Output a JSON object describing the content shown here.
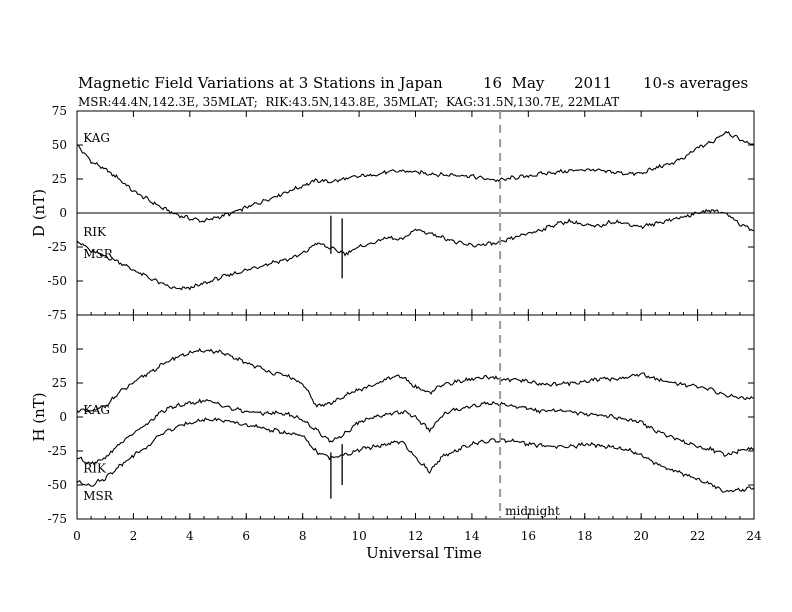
{
  "chart_data": {
    "type": "line",
    "title": "Magnetic Field Variations at 3 Stations in Japan",
    "title_date": "16  May",
    "title_year": "2011",
    "title_avg": "10-s averages",
    "subtitle": "MSR:44.4N,142.3E, 35MLAT;  RIK:43.5N,143.8E, 35MLAT;  KAG:31.5N,130.7E, 22MLAT",
    "xlabel": "Universal Time",
    "xlim": [
      0,
      24
    ],
    "x_ticks": [
      0,
      2,
      4,
      6,
      8,
      10,
      12,
      14,
      16,
      18,
      20,
      22,
      24
    ],
    "midnight_ut": 15,
    "midnight_label": "midnight",
    "panels": [
      {
        "ylabel": "D (nT)",
        "ylim": [
          -75,
          75
        ],
        "y_ticks": [
          -75,
          -50,
          -25,
          0,
          25,
          50,
          75
        ],
        "zero_line": true,
        "series": [
          {
            "name": "KAG",
            "x": [
              0,
              0.5,
              1,
              1.5,
              2,
              2.5,
              3,
              3.5,
              4,
              4.5,
              5,
              5.5,
              6,
              6.5,
              7,
              7.5,
              8,
              8.5,
              9,
              9.5,
              10,
              10.5,
              11,
              11.5,
              12,
              12.5,
              13,
              13.5,
              14,
              14.5,
              15,
              15.5,
              16,
              16.5,
              17,
              17.5,
              18,
              18.5,
              19,
              19.5,
              20,
              20.5,
              21,
              21.5,
              22,
              22.5,
              23,
              23.5,
              24
            ],
            "y": [
              50,
              38,
              32,
              25,
              16,
              10,
              4,
              -1,
              -4,
              -6,
              -3,
              0,
              4,
              8,
              12,
              16,
              20,
              24,
              23,
              25,
              27,
              28,
              30,
              31,
              30,
              29,
              28,
              28,
              27,
              25,
              24,
              26,
              27,
              29,
              30,
              31,
              32,
              31,
              30,
              29,
              29,
              33,
              36,
              40,
              48,
              52,
              60,
              54,
              50
            ]
          },
          {
            "name": "RIK",
            "x": [
              0,
              0.5,
              1,
              1.5,
              2,
              2.5,
              3,
              3.5,
              4,
              4.5,
              5,
              5.5,
              6,
              6.5,
              7,
              7.5,
              8,
              8.5,
              9,
              9.5,
              10,
              10.5,
              11,
              11.5,
              12,
              12.5,
              13,
              13.5,
              14,
              14.5,
              15,
              15.5,
              16,
              16.5,
              17,
              17.5,
              18,
              18.5,
              19,
              19.5,
              20,
              20.5,
              21,
              21.5,
              22,
              22.5,
              23,
              23.5,
              24
            ],
            "y": [
              -20,
              -28,
              -32,
              -36,
              -42,
              -47,
              -52,
              -56,
              -55,
              -52,
              -48,
              -45,
              -42,
              -39,
              -36,
              -34,
              -30,
              -22,
              -26,
              -30,
              -25,
              -22,
              -18,
              -20,
              -12,
              -15,
              -18,
              -22,
              -24,
              -23,
              -22,
              -18,
              -15,
              -12,
              -8,
              -6,
              -9,
              -10,
              -6,
              -8,
              -10,
              -8,
              -5,
              -3,
              0,
              2,
              0,
              -8,
              -13
            ]
          }
        ],
        "spikes": [
          {
            "x": 9.0,
            "y_top": -2,
            "y_bottom": -30
          },
          {
            "x": 9.4,
            "y_top": -4,
            "y_bottom": -48
          }
        ],
        "labels": [
          {
            "text": "KAG",
            "x": 0.15,
            "y": 55
          },
          {
            "text": "RIK",
            "x": 0.15,
            "y": -14
          },
          {
            "text": "MSR",
            "x": 0.15,
            "y": -30
          }
        ]
      },
      {
        "ylabel": "H (nT)",
        "ylim": [
          -75,
          75
        ],
        "y_ticks": [
          -75,
          -50,
          -25,
          0,
          25,
          50
        ],
        "zero_line": false,
        "series": [
          {
            "name": "KAG",
            "x": [
              0,
              0.5,
              1,
              1.5,
              2,
              2.5,
              3,
              3.5,
              4,
              4.5,
              5,
              5.5,
              6,
              6.5,
              7,
              7.5,
              8,
              8.5,
              9,
              9.5,
              10,
              10.5,
              11,
              11.5,
              12,
              12.5,
              13,
              13.5,
              14,
              14.5,
              15,
              15.5,
              16,
              16.5,
              17,
              17.5,
              18,
              18.5,
              19,
              19.5,
              20,
              20.5,
              21,
              21.5,
              22,
              22.5,
              23,
              23.5,
              24
            ],
            "y": [
              5,
              4,
              8,
              18,
              25,
              32,
              38,
              44,
              47,
              49,
              48,
              44,
              40,
              36,
              32,
              30,
              24,
              8,
              10,
              16,
              20,
              23,
              28,
              30,
              22,
              18,
              24,
              26,
              28,
              29,
              28,
              27,
              26,
              24,
              24,
              25,
              26,
              28,
              28,
              29,
              32,
              28,
              26,
              24,
              22,
              20,
              16,
              14,
              14
            ]
          },
          {
            "name": "RIK",
            "x": [
              0,
              0.5,
              1,
              1.5,
              2,
              2.5,
              3,
              3.5,
              4,
              4.5,
              5,
              5.5,
              6,
              6.5,
              7,
              7.5,
              8,
              8.5,
              9,
              9.5,
              10,
              10.5,
              11,
              11.5,
              12,
              12.5,
              13,
              13.5,
              14,
              14.5,
              15,
              15.5,
              16,
              16.5,
              17,
              17.5,
              18,
              18.5,
              19,
              19.5,
              20,
              20.5,
              21,
              21.5,
              22,
              22.5,
              23,
              23.5,
              24
            ],
            "y": [
              -30,
              -34,
              -30,
              -20,
              -12,
              -5,
              4,
              8,
              10,
              12,
              10,
              6,
              4,
              3,
              3,
              2,
              -2,
              -10,
              -18,
              -12,
              -4,
              0,
              2,
              4,
              0,
              -10,
              2,
              6,
              8,
              10,
              10,
              8,
              6,
              4,
              5,
              4,
              2,
              2,
              0,
              -2,
              -4,
              -10,
              -14,
              -18,
              -22,
              -24,
              -28,
              -25,
              -23
            ]
          },
          {
            "name": "MSR",
            "x": [
              0,
              0.5,
              1,
              1.5,
              2,
              2.5,
              3,
              3.5,
              4,
              4.5,
              5,
              5.5,
              6,
              6.5,
              7,
              7.5,
              8,
              8.5,
              9,
              9.5,
              10,
              10.5,
              11,
              11.5,
              12,
              12.5,
              13,
              13.5,
              14,
              14.5,
              15,
              15.5,
              16,
              16.5,
              17,
              17.5,
              18,
              18.5,
              19,
              19.5,
              20,
              20.5,
              21,
              21.5,
              22,
              22.5,
              23,
              23.5,
              24
            ],
            "y": [
              -48,
              -50,
              -45,
              -36,
              -28,
              -22,
              -12,
              -8,
              -4,
              -2,
              -2,
              -4,
              -6,
              -8,
              -10,
              -12,
              -14,
              -26,
              -30,
              -28,
              -24,
              -22,
              -20,
              -18,
              -30,
              -40,
              -28,
              -24,
              -20,
              -18,
              -17,
              -18,
              -20,
              -21,
              -22,
              -22,
              -20,
              -21,
              -22,
              -24,
              -28,
              -34,
              -38,
              -42,
              -46,
              -50,
              -55,
              -54,
              -52
            ]
          }
        ],
        "spikes": [
          {
            "x": 9.0,
            "y_top": -26,
            "y_bottom": -60
          },
          {
            "x": 9.4,
            "y_top": -20,
            "y_bottom": -50
          }
        ],
        "labels": [
          {
            "text": "KAG",
            "x": 0.15,
            "y": 5
          },
          {
            "text": "RIK",
            "x": 0.15,
            "y": -38
          },
          {
            "text": "MSR",
            "x": 0.15,
            "y": -58
          }
        ]
      }
    ]
  }
}
